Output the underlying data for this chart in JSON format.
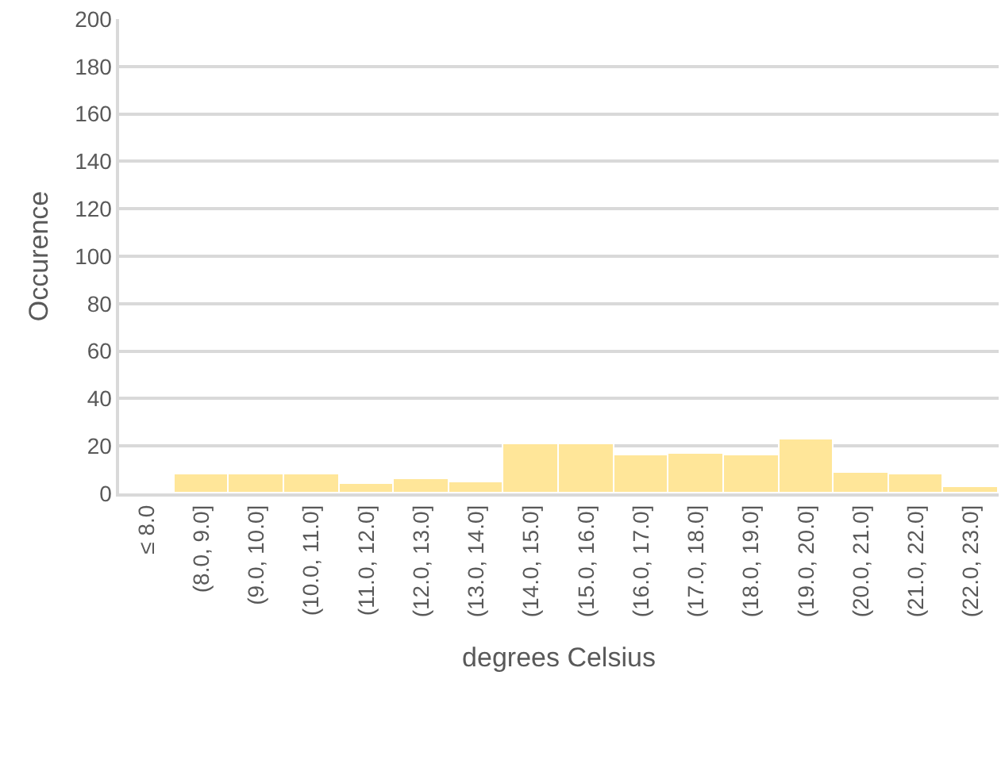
{
  "chart_data": {
    "type": "bar",
    "xlabel": "degrees Celsius",
    "ylabel": "Occurence",
    "categories": [
      "≤ 8.0",
      "(8.0, 9.0]",
      "(9.0, 10.0]",
      "(10.0, 11.0]",
      "(11.0, 12.0]",
      "(12.0, 13.0]",
      "(13.0, 14.0]",
      "(14.0, 15.0]",
      "(15.0, 16.0]",
      "(16.0, 17.0]",
      "(17.0, 18.0]",
      "(18.0, 19.0]",
      "(19.0, 20.0]",
      "(20.0, 21.0]",
      "(21.0, 22.0]",
      "(22.0, 23.0]"
    ],
    "values": [
      0,
      8,
      8,
      8,
      4,
      6,
      5,
      21,
      21,
      16,
      17,
      16,
      23,
      9,
      8,
      3
    ],
    "color": "#ffe699",
    "ylim": [
      0,
      200
    ],
    "yticks": [
      0,
      20,
      40,
      60,
      80,
      100,
      120,
      140,
      160,
      180,
      200
    ],
    "grid": "y"
  }
}
